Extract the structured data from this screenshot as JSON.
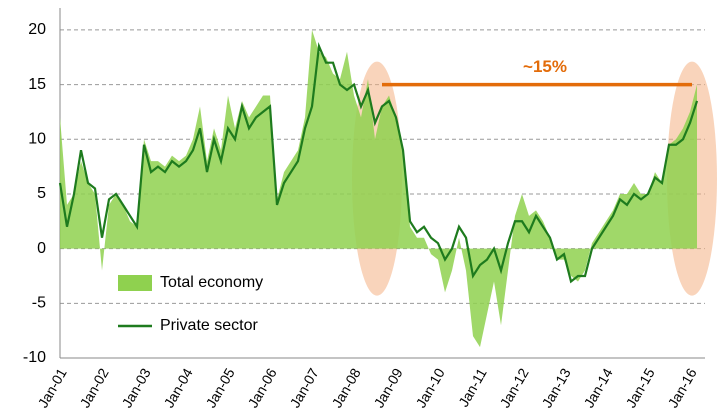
{
  "chart_data": {
    "type": "area_line",
    "categories": [
      "Jan-01",
      null,
      null,
      null,
      null,
      null,
      "Jan-02",
      null,
      null,
      null,
      null,
      null,
      "Jan-03",
      null,
      null,
      null,
      null,
      null,
      "Jan-04",
      null,
      null,
      null,
      null,
      null,
      "Jan-05",
      null,
      null,
      null,
      null,
      null,
      "Jan-06",
      null,
      null,
      null,
      null,
      null,
      "Jan-07",
      null,
      null,
      null,
      null,
      null,
      "Jan-08",
      null,
      null,
      null,
      null,
      null,
      "Jan-09",
      null,
      null,
      null,
      null,
      null,
      "Jan-10",
      null,
      null,
      null,
      null,
      null,
      "Jan-11",
      null,
      null,
      null,
      null,
      null,
      "Jan-12",
      null,
      null,
      null,
      null,
      null,
      "Jan-13",
      null,
      null,
      null,
      null,
      null,
      "Jan-14",
      null,
      null,
      null,
      null,
      null,
      "Jan-15",
      null,
      null,
      null,
      null,
      null,
      "Jan-16",
      null
    ],
    "series": [
      {
        "name": "Total economy",
        "kind": "area",
        "color": "#8fd14f",
        "values": [
          12,
          4,
          5,
          8,
          6,
          5,
          -2,
          4,
          5,
          4,
          2.5,
          2,
          10,
          8,
          8,
          7.5,
          8.5,
          8,
          8.5,
          10,
          13,
          8,
          11,
          9,
          14,
          11,
          13.5,
          12,
          13,
          14,
          14,
          4.5,
          7,
          8,
          9,
          12,
          20,
          18,
          17.5,
          16,
          15.5,
          18,
          14,
          12,
          15.5,
          10,
          13,
          14,
          12,
          8.5,
          2,
          1,
          1,
          -0.5,
          -1,
          -4,
          -2,
          1,
          -2,
          -8,
          -9,
          -6,
          -3,
          -7,
          -2,
          3,
          5,
          3,
          3.5,
          2.5,
          1,
          -1,
          -1,
          -2.5,
          -3,
          -2,
          0.5,
          1.5,
          2.5,
          3.5,
          5,
          5,
          6,
          5,
          5,
          7,
          6,
          9.5,
          10,
          11,
          12.5,
          15
        ]
      },
      {
        "name": "Private sector",
        "kind": "line",
        "color": "#1e7b1e",
        "values": [
          6,
          2,
          5,
          9,
          6,
          5.5,
          1,
          4.5,
          5,
          4,
          3,
          2,
          9.5,
          7,
          7.5,
          7,
          8,
          7.5,
          8,
          9,
          11,
          7,
          10,
          8,
          11,
          10,
          13,
          11,
          12,
          12.5,
          13,
          4,
          6,
          7,
          8,
          11,
          13,
          18.5,
          17,
          17,
          15,
          14.5,
          15,
          13,
          14.5,
          11.5,
          13,
          13.5,
          12,
          9,
          2.5,
          1.5,
          2,
          1,
          0.5,
          -1,
          0,
          2,
          1,
          -2.5,
          -1.5,
          -1,
          0,
          -2,
          0.5,
          2.5,
          2.5,
          1.5,
          3,
          2,
          1,
          -1,
          -0.5,
          -3,
          -2.5,
          -2.5,
          0,
          1,
          2,
          3,
          4.5,
          4,
          5,
          4.5,
          5,
          6.5,
          6,
          9.5,
          9.5,
          10,
          11.5,
          13.5
        ]
      }
    ],
    "ylim": [
      -10,
      22
    ],
    "yticks": [
      -10,
      -5,
      0,
      5,
      10,
      15,
      20
    ],
    "grid": true,
    "annotation": {
      "text": "~15%",
      "value": 15,
      "color": "#e36c0a"
    }
  }
}
